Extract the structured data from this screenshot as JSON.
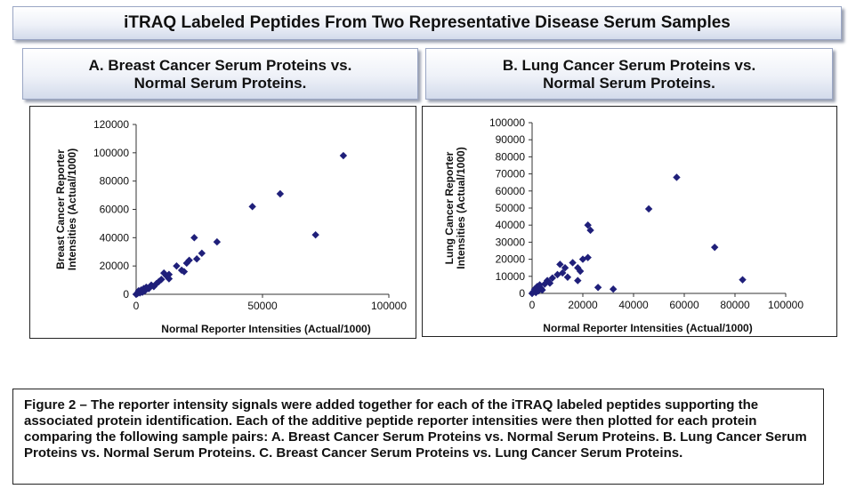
{
  "main_title": "iTRAQ Labeled Peptides From Two Representative Disease Serum Samples",
  "panels": [
    {
      "title_line1": "A.  Breast Cancer Serum Proteins vs.",
      "title_line2": "Normal Serum Proteins."
    },
    {
      "title_line1": "B. Lung Cancer Serum Proteins vs.",
      "title_line2": "Normal Serum Proteins."
    }
  ],
  "marker_color": "#1f1f7a",
  "chart_data": [
    {
      "type": "scatter",
      "xlabel": "Normal Reporter Intensities (Actual/1000)",
      "ylabel": "Breast Cancer Reporter Intensities (Actual/1000)",
      "xlim": [
        0,
        100000
      ],
      "ylim": [
        0,
        120000
      ],
      "xticks": [
        0,
        50000,
        100000
      ],
      "yticks": [
        0,
        20000,
        40000,
        60000,
        80000,
        100000,
        120000
      ],
      "grid": false,
      "legend": "none",
      "points": [
        [
          0,
          0
        ],
        [
          500,
          500
        ],
        [
          800,
          1500
        ],
        [
          1000,
          2500
        ],
        [
          1500,
          1000
        ],
        [
          2000,
          3000
        ],
        [
          2500,
          1500
        ],
        [
          3000,
          4000
        ],
        [
          3500,
          2500
        ],
        [
          4000,
          5000
        ],
        [
          5000,
          4000
        ],
        [
          6000,
          6500
        ],
        [
          7000,
          5500
        ],
        [
          8000,
          7500
        ],
        [
          9000,
          9000
        ],
        [
          10000,
          10500
        ],
        [
          11000,
          15000
        ],
        [
          12000,
          13000
        ],
        [
          13000,
          14000
        ],
        [
          13000,
          11000
        ],
        [
          16000,
          20000
        ],
        [
          18000,
          17000
        ],
        [
          19000,
          16000
        ],
        [
          20000,
          22000
        ],
        [
          21000,
          24000
        ],
        [
          23000,
          40000
        ],
        [
          24000,
          25000
        ],
        [
          26000,
          29000
        ],
        [
          32000,
          37000
        ],
        [
          46000,
          62000
        ],
        [
          57000,
          71000
        ],
        [
          71000,
          42000
        ],
        [
          82000,
          98000
        ]
      ]
    },
    {
      "type": "scatter",
      "xlabel": "Normal Reporter Intensities (Actual/1000)",
      "ylabel": "Lung Cancer Reporter Intensities (Actual/1000)",
      "xlim": [
        0,
        100000
      ],
      "ylim": [
        0,
        100000
      ],
      "xticks": [
        0,
        20000,
        40000,
        60000,
        80000,
        100000
      ],
      "yticks": [
        0,
        10000,
        20000,
        30000,
        40000,
        50000,
        60000,
        70000,
        80000,
        90000,
        100000
      ],
      "grid": false,
      "legend": "none",
      "points": [
        [
          0,
          0
        ],
        [
          500,
          1000
        ],
        [
          1000,
          2500
        ],
        [
          1500,
          500
        ],
        [
          2000,
          4000
        ],
        [
          2500,
          1500
        ],
        [
          3000,
          5000
        ],
        [
          3500,
          3000
        ],
        [
          4000,
          2000
        ],
        [
          5000,
          5500
        ],
        [
          6000,
          7500
        ],
        [
          7000,
          6000
        ],
        [
          8000,
          9000
        ],
        [
          10000,
          11000
        ],
        [
          11000,
          17000
        ],
        [
          12000,
          12000
        ],
        [
          13000,
          15000
        ],
        [
          14000,
          9500
        ],
        [
          16000,
          18000
        ],
        [
          18000,
          15000
        ],
        [
          18000,
          7500
        ],
        [
          19000,
          13000
        ],
        [
          20000,
          20000
        ],
        [
          22000,
          40000
        ],
        [
          22000,
          21000
        ],
        [
          23000,
          37000
        ],
        [
          26000,
          3500
        ],
        [
          32000,
          2500
        ],
        [
          46000,
          49500
        ],
        [
          57000,
          68000
        ],
        [
          72000,
          27000
        ],
        [
          83000,
          8000
        ]
      ]
    }
  ],
  "caption": "Figure 2 – The reporter intensity signals were added together for each of the iTRAQ labeled peptides supporting the associated protein identification. Each of the additive peptide reporter intensities were then plotted for each protein comparing the following sample pairs: A. Breast Cancer Serum Proteins vs. Normal Serum Proteins. B. Lung Cancer Serum Proteins vs. Normal Serum Proteins. C. Breast Cancer Serum Proteins vs. Lung Cancer Serum Proteins."
}
